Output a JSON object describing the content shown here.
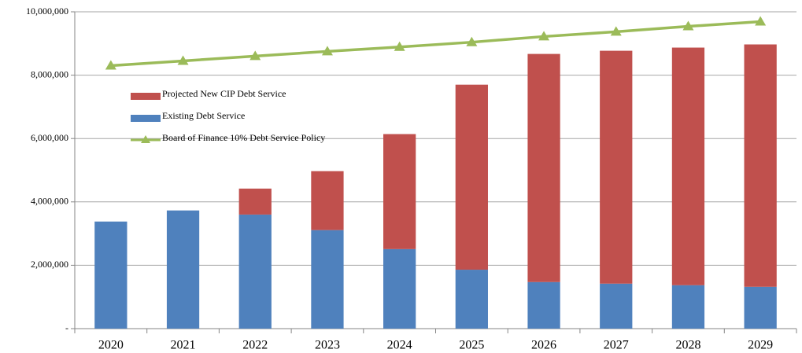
{
  "chart_data": {
    "type": "bar",
    "categories": [
      "2020",
      "2021",
      "2022",
      "2023",
      "2024",
      "2025",
      "2026",
      "2027",
      "2028",
      "2029"
    ],
    "stacked": true,
    "series": [
      {
        "name": "Existing Debt Service",
        "color": "#4f81bd",
        "values": [
          3380000,
          3730000,
          3600000,
          3110000,
          2510000,
          1860000,
          1470000,
          1420000,
          1370000,
          1320000
        ]
      },
      {
        "name": "Projected New CIP Debt Service",
        "color": "#c0504d",
        "values": [
          0,
          0,
          820000,
          1860000,
          3630000,
          5840000,
          7200000,
          7350000,
          7500000,
          7650000
        ]
      },
      {
        "name": "Board of Finance 10% Debt Service Policy",
        "color": "#9bbb59",
        "type": "line",
        "values": [
          8300000,
          8450000,
          8600000,
          8750000,
          8890000,
          9040000,
          9220000,
          9370000,
          9540000,
          9690000
        ]
      }
    ],
    "ylim": [
      0,
      10000000
    ],
    "yticks": [
      {
        "value": 0,
        "label": "-"
      },
      {
        "value": 2000000,
        "label": "2,000,000"
      },
      {
        "value": 4000000,
        "label": "4,000,000"
      },
      {
        "value": 6000000,
        "label": "6,000,000"
      },
      {
        "value": 8000000,
        "label": "8,000,000"
      },
      {
        "value": 10000000,
        "label": "10,000,000"
      }
    ],
    "grid": true,
    "legend": "upper left"
  }
}
